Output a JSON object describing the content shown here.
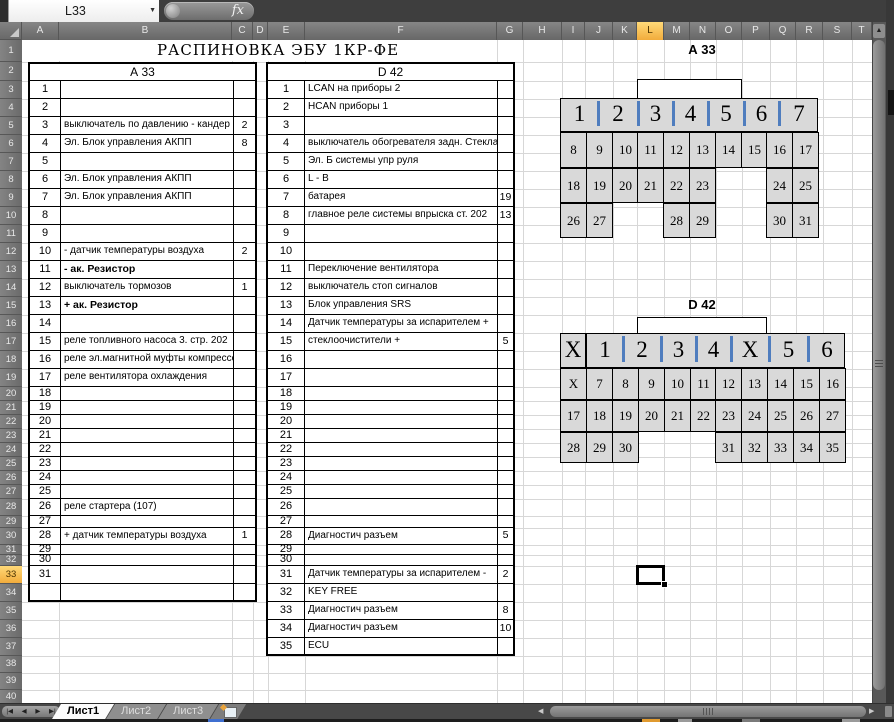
{
  "title_bar": {
    "name_box": "L33",
    "fx": "fx"
  },
  "sheet": {
    "title": "РАСПИНОВКА ЭБУ 1КР-ФЕ",
    "column_headers": [
      "A",
      "B",
      "C",
      "D",
      "E",
      "F",
      "G",
      "H",
      "I",
      "J",
      "K",
      "L",
      "M",
      "N",
      "O",
      "P",
      "Q",
      "R",
      "S",
      "T"
    ],
    "row_headers": [
      "1",
      "2",
      "3",
      "4",
      "5",
      "6",
      "7",
      "8",
      "9",
      "10",
      "11",
      "12",
      "13",
      "14",
      "15",
      "16",
      "17",
      "18",
      "19",
      "20",
      "21",
      "22",
      "23",
      "24",
      "25",
      "26",
      "27",
      "28",
      "29",
      "30",
      "31",
      "32",
      "33",
      "34",
      "35",
      "36",
      "37",
      "38",
      "39",
      "40"
    ],
    "selected_column": "L",
    "selected_row": "33",
    "active_cell": "L33"
  },
  "pin_table_a33": {
    "header": "А 33",
    "rows": [
      {
        "p": "1",
        "d": "",
        "v": ""
      },
      {
        "p": "2",
        "d": "",
        "v": ""
      },
      {
        "p": "3",
        "d": "выключатель по давлению - кандер",
        "v": "2"
      },
      {
        "p": "4",
        "d": "Эл. Блок управления АКПП",
        "v": "8"
      },
      {
        "p": "5",
        "d": "",
        "v": ""
      },
      {
        "p": "6",
        "d": "Эл. Блок управления АКПП",
        "v": ""
      },
      {
        "p": "7",
        "d": "Эл. Блок управления АКПП",
        "v": ""
      },
      {
        "p": "8",
        "d": "",
        "v": ""
      },
      {
        "p": "9",
        "d": "",
        "v": ""
      },
      {
        "p": "10",
        "d": "- датчик температуры воздуха",
        "v": "2"
      },
      {
        "p": "11",
        "d": "- ак. Резистор",
        "v": "",
        "b": true
      },
      {
        "p": "12",
        "d": "выключатель тормозов",
        "v": "1"
      },
      {
        "p": "13",
        "d": "+ ак. Резистор",
        "v": "",
        "b": true
      },
      {
        "p": "14",
        "d": "",
        "v": ""
      },
      {
        "p": "15",
        "d": "реле топливного насоса 3. стр. 202",
        "v": ""
      },
      {
        "p": "16",
        "d": "реле эл.магнитной муфты компрессора",
        "v": ""
      },
      {
        "p": "17",
        "d": "реле вентилятора охлаждения",
        "v": ""
      },
      {
        "p": "18",
        "d": "",
        "v": ""
      },
      {
        "p": "19",
        "d": "",
        "v": ""
      },
      {
        "p": "20",
        "d": "",
        "v": ""
      },
      {
        "p": "21",
        "d": "",
        "v": ""
      },
      {
        "p": "22",
        "d": "",
        "v": ""
      },
      {
        "p": "23",
        "d": "",
        "v": ""
      },
      {
        "p": "24",
        "d": "",
        "v": ""
      },
      {
        "p": "25",
        "d": "",
        "v": ""
      },
      {
        "p": "26",
        "d": "реле стартера (107)",
        "v": ""
      },
      {
        "p": "27",
        "d": "",
        "v": ""
      },
      {
        "p": "28",
        "d": "+ датчик температуры воздуха",
        "v": "1"
      },
      {
        "p": "29",
        "d": "",
        "v": ""
      },
      {
        "p": "30",
        "d": "",
        "v": ""
      },
      {
        "p": "31",
        "d": "",
        "v": ""
      }
    ]
  },
  "pin_table_d42": {
    "header": "D 42",
    "rows": [
      {
        "p": "1",
        "d": "LCAN на приборы 2",
        "v": ""
      },
      {
        "p": "2",
        "d": "HCAN  приборы 1",
        "v": ""
      },
      {
        "p": "3",
        "d": "",
        "v": ""
      },
      {
        "p": "4",
        "d": "выключатель обогревателя задн. Стекла",
        "v": ""
      },
      {
        "p": "5",
        "d": "Эл. Б системы упр руля",
        "v": ""
      },
      {
        "p": "6",
        "d": "L - B",
        "v": ""
      },
      {
        "p": "7",
        "d": "батарея",
        "v": "19"
      },
      {
        "p": "8",
        "d": "главное реле системы впрыска ст. 202",
        "v": "13"
      },
      {
        "p": "9",
        "d": "",
        "v": ""
      },
      {
        "p": "10",
        "d": "",
        "v": ""
      },
      {
        "p": "11",
        "d": "Переключение вентилятора",
        "v": ""
      },
      {
        "p": "12",
        "d": "выключатель стоп сигналов",
        "v": ""
      },
      {
        "p": "13",
        "d": "Блок управления SRS",
        "v": ""
      },
      {
        "p": "14",
        "d": "Датчик температуры за испарителем +",
        "v": ""
      },
      {
        "p": "15",
        "d": "стеклоочистители +",
        "v": "5"
      },
      {
        "p": "16",
        "d": "",
        "v": ""
      },
      {
        "p": "17",
        "d": "",
        "v": ""
      },
      {
        "p": "18",
        "d": "",
        "v": ""
      },
      {
        "p": "19",
        "d": "",
        "v": ""
      },
      {
        "p": "20",
        "d": "",
        "v": ""
      },
      {
        "p": "21",
        "d": "",
        "v": ""
      },
      {
        "p": "22",
        "d": "",
        "v": ""
      },
      {
        "p": "23",
        "d": "",
        "v": ""
      },
      {
        "p": "24",
        "d": "",
        "v": ""
      },
      {
        "p": "25",
        "d": "",
        "v": ""
      },
      {
        "p": "26",
        "d": "",
        "v": ""
      },
      {
        "p": "27",
        "d": "",
        "v": ""
      },
      {
        "p": "28",
        "d": "Диагностич разъем",
        "v": "5"
      },
      {
        "p": "29",
        "d": "",
        "v": ""
      },
      {
        "p": "30",
        "d": "",
        "v": ""
      },
      {
        "p": "31",
        "d": "Датчик температуры за испарителем -",
        "v": "2"
      },
      {
        "p": "32",
        "d": "KEY FREE",
        "v": ""
      },
      {
        "p": "33",
        "d": "Диагностич разъем",
        "v": "8"
      },
      {
        "p": "34",
        "d": "Диагностич разъем",
        "v": "10"
      },
      {
        "p": "35",
        "d": "ECU",
        "v": ""
      }
    ]
  },
  "connector_a33": {
    "title": "А 33",
    "band": [
      "1",
      "2",
      "3",
      "4",
      "5",
      "6",
      "7"
    ],
    "row2": [
      "8",
      "9",
      "10",
      "11",
      "12",
      "13",
      "14",
      "15",
      "16",
      "17"
    ],
    "row3": [
      "18",
      "19",
      "20",
      "21",
      "22",
      "23",
      "",
      "",
      "24",
      "25"
    ],
    "row4": [
      "26",
      "27",
      "",
      "",
      "28",
      "29",
      "",
      "",
      "30",
      "31"
    ]
  },
  "connector_d42": {
    "title": "D 42",
    "corner": "X",
    "band": [
      "1",
      "2",
      "3",
      "4",
      "X",
      "5",
      "6"
    ],
    "row2": [
      "X",
      "7",
      "8",
      "9",
      "10",
      "11",
      "12",
      "13",
      "14",
      "15",
      "16"
    ],
    "row3": [
      "17",
      "18",
      "19",
      "20",
      "21",
      "22",
      "23",
      "24",
      "25",
      "26",
      "27"
    ],
    "row4": [
      "28",
      "29",
      "30",
      "",
      "",
      "",
      "31",
      "32",
      "33",
      "34",
      "35"
    ]
  },
  "bottom_bar": {
    "sheet_tabs": [
      {
        "label": "Лист1",
        "active": true
      },
      {
        "label": "Лист2",
        "active": false
      },
      {
        "label": "Лист3",
        "active": false
      }
    ]
  },
  "icons": {
    "name_box_dropdown": "▼",
    "scroll_up": "▲",
    "scroll_left": "◀",
    "scroll_right": "▶",
    "nav_first": "|◀",
    "nav_prev": "◀",
    "nav_next": "▶",
    "nav_last": "▶|"
  },
  "colors": {
    "selection_highlight": "#f2ac3c",
    "connector_cell": "#d9d9d9",
    "connector_separator": "#4f7dbe",
    "header_bar": "#6e6e6e"
  }
}
